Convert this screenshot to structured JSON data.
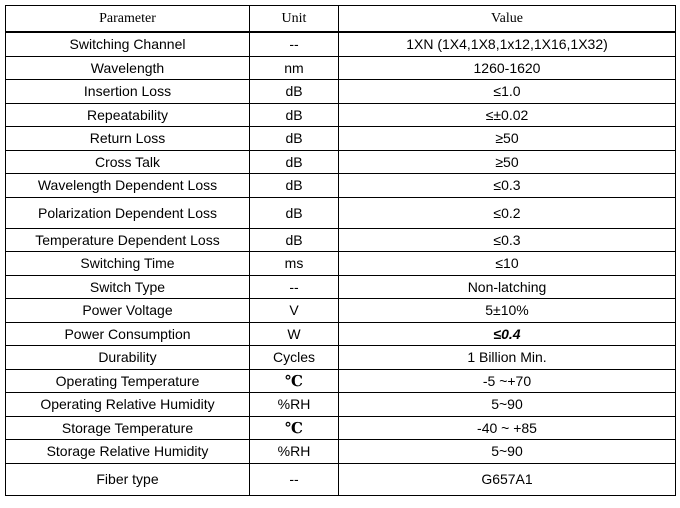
{
  "table": {
    "headers": {
      "parameter": "Parameter",
      "unit": "Unit",
      "value": "Value"
    },
    "rows": [
      {
        "parameter": "Switching Channel",
        "unit": "--",
        "value": "1XN (1X4,1X8,1x12,1X16,1X32)"
      },
      {
        "parameter": "Wavelength",
        "unit": "nm",
        "value": "1260-1620"
      },
      {
        "parameter": "Insertion Loss",
        "unit": "dB",
        "value": "≤1.0"
      },
      {
        "parameter": "Repeatability",
        "unit": "dB",
        "value": "≤±0.02"
      },
      {
        "parameter": "Return Loss",
        "unit": "dB",
        "value": "≥50"
      },
      {
        "parameter": "Cross Talk",
        "unit": "dB",
        "value": "≥50"
      },
      {
        "parameter": "Wavelength Dependent Loss",
        "unit": "dB",
        "value": "≤0.3"
      },
      {
        "parameter": "Polarization Dependent Loss",
        "unit": "dB",
        "value": "≤0.2"
      },
      {
        "parameter": "Temperature Dependent Loss",
        "unit": "dB",
        "value": "≤0.3"
      },
      {
        "parameter": "Switching Time",
        "unit": "ms",
        "value": "≤10"
      },
      {
        "parameter": "Switch Type",
        "unit": "--",
        "value": "Non-latching"
      },
      {
        "parameter": "Power Voltage",
        "unit": "V",
        "value": "5±10%"
      },
      {
        "parameter": "Power Consumption",
        "unit": "W",
        "value": "≤0.4"
      },
      {
        "parameter": "Durability",
        "unit": "Cycles",
        "value": "1 Billion Min."
      },
      {
        "parameter": "Operating Temperature",
        "unit": "℃",
        "value": "-5 ~+70"
      },
      {
        "parameter": "Operating Relative Humidity",
        "unit": "%RH",
        "value": "5~90"
      },
      {
        "parameter": "Storage Temperature",
        "unit": "℃",
        "value": "-40 ~ +85"
      },
      {
        "parameter": "Storage Relative Humidity",
        "unit": "%RH",
        "value": "5~90"
      },
      {
        "parameter": "Fiber type",
        "unit": "--",
        "value": "G657A1"
      }
    ]
  }
}
